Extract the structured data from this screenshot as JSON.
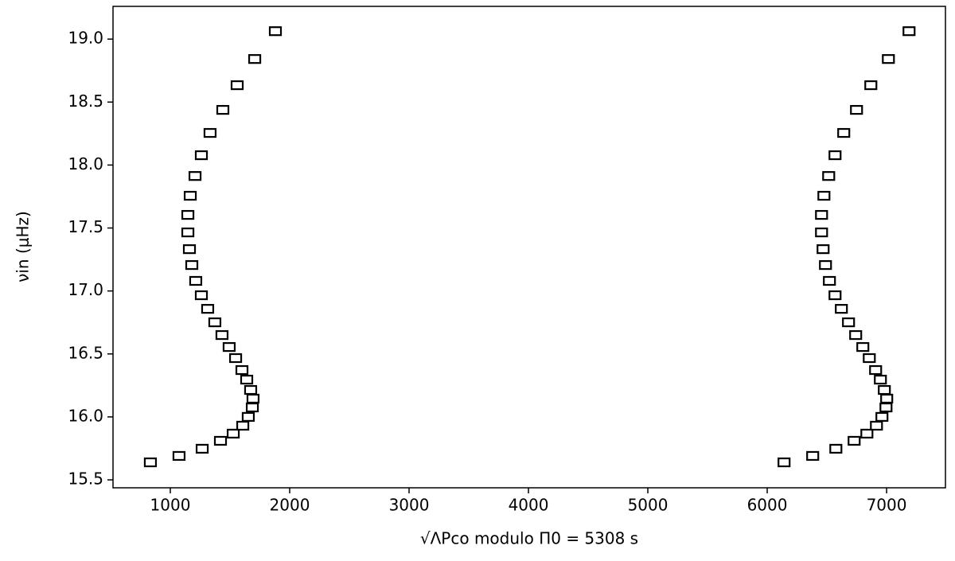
{
  "chart_data": {
    "type": "scatter",
    "xlabel": "√ΛPco modulo Π0 = 5308 s",
    "ylabel": "νin (μHz)",
    "x": [
      833,
      1073,
      1267,
      1420,
      1527,
      1607,
      1653,
      1687,
      1693,
      1673,
      1640,
      1600,
      1547,
      1493,
      1433,
      1373,
      1313,
      1260,
      1213,
      1180,
      1160,
      1147,
      1147,
      1167,
      1207,
      1260,
      1333,
      1440,
      1560,
      1707,
      1880,
      6141,
      6381,
      6575,
      6728,
      6835,
      6915,
      6961,
      6995,
      7001,
      6981,
      6948,
      6908,
      6855,
      6801,
      6741,
      6681,
      6621,
      6568,
      6521,
      6488,
      6468,
      6455,
      6455,
      6475,
      6515,
      6568,
      6641,
      6748,
      6868,
      7015,
      7188
    ],
    "values": [
      15.639,
      15.69,
      15.747,
      15.81,
      15.867,
      15.93,
      16.0,
      16.075,
      16.145,
      16.214,
      16.296,
      16.372,
      16.467,
      16.555,
      16.65,
      16.751,
      16.858,
      16.966,
      17.08,
      17.206,
      17.332,
      17.465,
      17.604,
      17.756,
      17.913,
      18.078,
      18.255,
      18.438,
      18.634,
      18.842,
      19.063,
      15.639,
      15.69,
      15.747,
      15.81,
      15.867,
      15.93,
      16.0,
      16.075,
      16.145,
      16.214,
      16.296,
      16.372,
      16.467,
      16.555,
      16.65,
      16.751,
      16.858,
      16.966,
      17.08,
      17.206,
      17.332,
      17.465,
      17.604,
      17.756,
      17.913,
      18.078,
      18.255,
      18.438,
      18.634,
      18.842,
      19.063
    ],
    "marker_color": "#000000",
    "xlim": [
      520,
      7493
    ],
    "ylim": [
      15.437,
      19.26
    ],
    "xticks": [
      1000,
      2000,
      3000,
      4000,
      5000,
      6000,
      7000
    ],
    "yticks": [
      15.5,
      {
        "value": 16,
        "label": "16.0"
      },
      16.5,
      {
        "value": 17,
        "label": "17.0"
      },
      17.5,
      {
        "value": 18,
        "label": "18.0"
      },
      18.5,
      {
        "value": 19,
        "label": "19.0"
      }
    ],
    "grid": false
  }
}
